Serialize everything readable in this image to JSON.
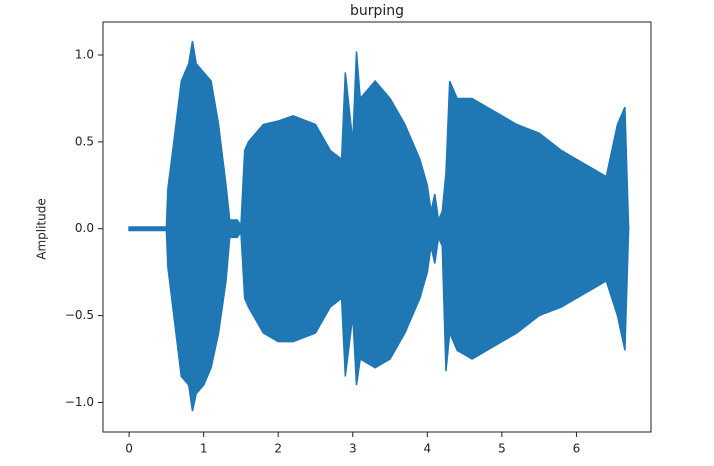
{
  "chart_data": {
    "type": "waveform",
    "title": "burping",
    "y_label": "Amplitude",
    "color": "#1f77b4",
    "xlim": [
      -0.35,
      7.0
    ],
    "ylim": [
      -1.17,
      1.19
    ],
    "xticks": [
      0,
      1,
      2,
      3,
      4,
      5,
      6
    ],
    "yticks": [
      {
        "value": -1.0,
        "label": "−1.0"
      },
      {
        "value": -0.5,
        "label": "−0.5"
      },
      {
        "value": 0,
        "label": "0.0"
      },
      {
        "value": 0.5,
        "label": "0.5"
      },
      {
        "value": 1.0,
        "label": "1.0"
      }
    ],
    "x": [
      0,
      0.5,
      0.52,
      0.6,
      0.7,
      0.8,
      0.85,
      0.9,
      1.0,
      1.1,
      1.2,
      1.3,
      1.35,
      1.45,
      1.5,
      1.55,
      1.6,
      1.8,
      2.0,
      2.2,
      2.5,
      2.7,
      2.85,
      2.9,
      3.0,
      3.05,
      3.1,
      3.3,
      3.5,
      3.7,
      3.9,
      4.0,
      4.05,
      4.1,
      4.15,
      4.2,
      4.25,
      4.3,
      4.4,
      4.6,
      4.8,
      5.0,
      5.2,
      5.5,
      5.8,
      6.0,
      6.2,
      6.4,
      6.55,
      6.65,
      6.7
    ],
    "ymax": [
      0.01,
      0.01,
      0.23,
      0.5,
      0.85,
      0.95,
      1.08,
      0.95,
      0.9,
      0.85,
      0.6,
      0.25,
      0.05,
      0.05,
      0.02,
      0.45,
      0.5,
      0.6,
      0.62,
      0.65,
      0.6,
      0.45,
      0.4,
      0.9,
      0.5,
      1.02,
      0.75,
      0.85,
      0.75,
      0.6,
      0.4,
      0.25,
      0.1,
      0.2,
      0.05,
      0.1,
      0.32,
      0.85,
      0.75,
      0.75,
      0.7,
      0.65,
      0.6,
      0.55,
      0.45,
      0.4,
      0.35,
      0.3,
      0.6,
      0.7,
      0
    ],
    "ymin": [
      -0.01,
      -0.01,
      -0.22,
      -0.5,
      -0.85,
      -0.9,
      -1.05,
      -0.95,
      -0.9,
      -0.8,
      -0.6,
      -0.3,
      -0.05,
      -0.05,
      -0.02,
      -0.4,
      -0.45,
      -0.6,
      -0.65,
      -0.65,
      -0.6,
      -0.45,
      -0.4,
      -0.85,
      -0.5,
      -0.9,
      -0.75,
      -0.8,
      -0.75,
      -0.6,
      -0.4,
      -0.25,
      -0.1,
      -0.2,
      -0.05,
      -0.1,
      -0.82,
      -0.6,
      -0.7,
      -0.75,
      -0.7,
      -0.65,
      -0.6,
      -0.5,
      -0.45,
      -0.4,
      -0.35,
      -0.3,
      -0.5,
      -0.7,
      0
    ]
  }
}
